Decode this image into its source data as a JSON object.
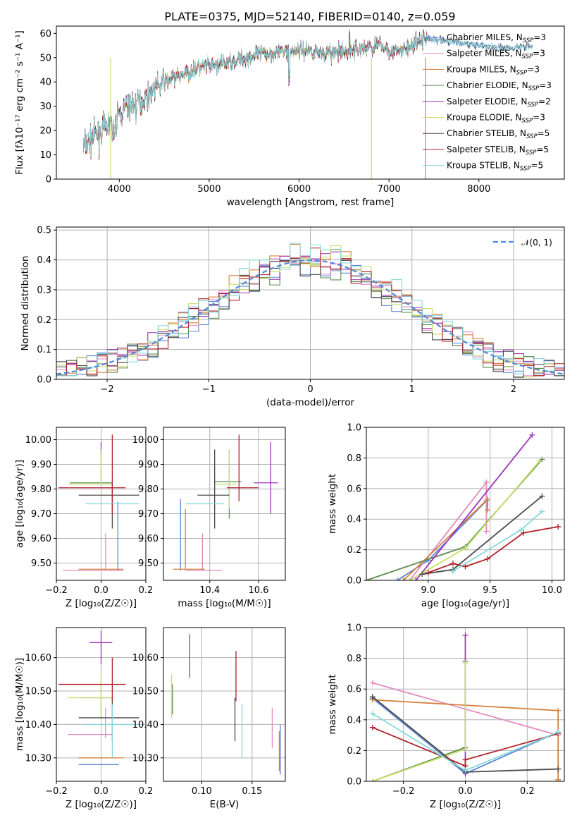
{
  "colors": {
    "Chabrier MILES": "#5f87d6",
    "Salpeter MILES": "#e28bc0",
    "Kroupa MILES": "#d6813a",
    "Chabrier ELODIE": "#5d8f4f",
    "Salpeter ELODIE": "#9b35b8",
    "Kroupa ELODIE": "#c8e06a",
    "Chabrier STELIB": "#4a4a4a",
    "Salpeter STELIB": "#b02028",
    "Kroupa STELIB": "#86d8dc",
    "normal": "#4f88d6"
  },
  "chart_data": [
    {
      "id": "spectrum",
      "type": "line",
      "title": "PLATE=0375, MJD=52140, FIBERID=0140, z=0.059",
      "xlabel": "wavelength [Angstrom, rest frame]",
      "ylabel": "Flux [fλ10⁻¹⁷ erg cm⁻² s⁻¹ A⁻¹]",
      "xlim": [
        3300,
        8950
      ],
      "ylim": [
        0,
        63
      ],
      "xticks": [
        4000,
        5000,
        6000,
        7000,
        8000
      ],
      "yticks": [
        0,
        10,
        20,
        30,
        40,
        50,
        60
      ],
      "grid": false,
      "legend_position": "right",
      "continuum_x": [
        3600,
        3700,
        3800,
        3900,
        3950,
        4000,
        4100,
        4200,
        4300,
        4400,
        4500,
        4700,
        4900,
        5100,
        5300,
        5500,
        5700,
        5900,
        6100,
        6300,
        6500,
        6700,
        6900,
        7100,
        7300,
        7400
      ],
      "continuum_y": [
        13,
        17,
        20,
        22,
        24,
        27,
        30,
        31,
        34,
        38,
        40,
        43,
        46,
        47,
        49,
        51,
        52,
        53,
        53,
        52,
        52,
        54,
        55,
        52,
        56,
        58
      ],
      "extended_x": [
        7400,
        7600,
        7800,
        8000,
        8200,
        8400,
        8600
      ],
      "extended_y": [
        58,
        57,
        56,
        55,
        54,
        54,
        55
      ],
      "series": [
        {
          "name": "Chabrier MILES, N_SSP=3",
          "text": "Chabrier MILES, N",
          "sub": "SSP",
          "suffix": "=3"
        },
        {
          "name": "Salpeter MILES, N_SSP=3",
          "text": "Salpeter MILES, N",
          "sub": "SSP",
          "suffix": "=3"
        },
        {
          "name": "Kroupa MILES, N_SSP=3",
          "text": "Kroupa MILES, N",
          "sub": "SSP",
          "suffix": "=3"
        },
        {
          "name": "Chabrier ELODIE, N_SSP=3",
          "text": "Chabrier ELODIE, N",
          "sub": "SSP",
          "suffix": "=3"
        },
        {
          "name": "Salpeter ELODIE, N_SSP=2",
          "text": "Salpeter ELODIE, N",
          "sub": "SSP",
          "suffix": "=2"
        },
        {
          "name": "Kroupa ELODIE, N_SSP=3",
          "text": "Kroupa ELODIE, N",
          "sub": "SSP",
          "suffix": "=3"
        },
        {
          "name": "Chabrier STELIB, N_SSP=5",
          "text": "Chabrier STELIB, N",
          "sub": "SSP",
          "suffix": "=5"
        },
        {
          "name": "Salpeter STELIB, N_SSP=5",
          "text": "Salpeter STELIB, N",
          "sub": "SSP",
          "suffix": "=5"
        },
        {
          "name": "Kroupa STELIB, N_SSP=5",
          "text": "Kroupa STELIB, N",
          "sub": "SSP",
          "suffix": "=5"
        }
      ]
    },
    {
      "id": "residuals",
      "type": "line",
      "xlabel": "(data-model)/error",
      "ylabel": "Normed distribution",
      "xlim": [
        -2.5,
        2.5
      ],
      "ylim": [
        0,
        0.51
      ],
      "xticks": [
        -2,
        -1,
        0,
        1,
        2
      ],
      "yticks": [
        0.0,
        0.1,
        0.2,
        0.3,
        0.4,
        0.5
      ],
      "grid": true,
      "legend": "𝒩(0, 1)",
      "legend_position": "top-right",
      "bin_width": 0.1
    },
    {
      "id": "age-vs-Z",
      "type": "scatter",
      "xlabel": "Z [log₁₀(Z/Z☉)]",
      "ylabel": "age  [log₁₀(age/yr)]",
      "xlim": [
        -0.2,
        0.2
      ],
      "ylim": [
        9.43,
        10.05
      ],
      "xticks": [
        -0.2,
        0.0,
        0.2
      ],
      "yticks": [
        9.5,
        9.6,
        9.7,
        9.8,
        9.9,
        10.0
      ],
      "grid": true,
      "points": [
        {
          "series": "Chabrier MILES",
          "x": 0.075,
          "y": 9.6,
          "xl": 0.075,
          "xh": 0.075,
          "yl": 9.47,
          "yh": 9.75
        },
        {
          "series": "Salpeter MILES",
          "x": 0.02,
          "y": 9.47,
          "xl": -0.17,
          "xh": 0.1,
          "yl": 9.47,
          "yh": 9.62
        },
        {
          "series": "Kroupa MILES",
          "x": 0.03,
          "y": 9.475,
          "xl": -0.1,
          "xh": 0.1,
          "yl": 9.475,
          "yh": 9.475
        },
        {
          "series": "Chabrier ELODIE",
          "x": 0.0,
          "y": 9.825,
          "xl": -0.14,
          "xh": 0.05,
          "yl": 9.83,
          "yh": 9.96
        },
        {
          "series": "Salpeter ELODIE",
          "x": 0.0,
          "y": 9.825,
          "xl": 0.0,
          "xh": 0.0,
          "yl": 9.94,
          "yh": 9.99
        },
        {
          "series": "Kroupa ELODIE",
          "x": 0.0,
          "y": 9.82,
          "xl": -0.15,
          "xh": 0.05,
          "yl": 9.82,
          "yh": 9.96
        },
        {
          "series": "Chabrier STELIB",
          "x": 0.05,
          "y": 9.775,
          "xl": -0.1,
          "xh": 0.17,
          "yl": 9.64,
          "yh": 9.83
        },
        {
          "series": "Salpeter STELIB",
          "x": 0.05,
          "y": 9.805,
          "xl": -0.19,
          "xh": 0.11,
          "yl": 9.7,
          "yh": 10.02
        },
        {
          "series": "Kroupa STELIB",
          "x": 0.05,
          "y": 9.74,
          "xl": -0.07,
          "xh": 0.17,
          "yl": 9.74,
          "yh": 9.74
        }
      ]
    },
    {
      "id": "age-vs-mass",
      "type": "scatter",
      "xlabel": "mass [log₁₀(M/M☉)]",
      "xlim": [
        10.21,
        10.71
      ],
      "ylim": [
        9.43,
        10.05
      ],
      "xticks": [
        10.4,
        10.6
      ],
      "yticks": [
        9.5,
        9.6,
        9.7,
        9.8,
        9.9,
        10.0
      ],
      "grid": true,
      "points": [
        {
          "series": "Chabrier MILES",
          "x": 10.28,
          "y": 9.47,
          "xl": 10.28,
          "xh": 10.28,
          "yl": 9.47,
          "yh": 9.76
        },
        {
          "series": "Salpeter MILES",
          "x": 10.37,
          "y": 9.47,
          "xl": 10.3,
          "xh": 10.45,
          "yl": 9.47,
          "yh": 9.62
        },
        {
          "series": "Kroupa MILES",
          "x": 10.3,
          "y": 9.475,
          "xl": 10.25,
          "xh": 10.38,
          "yl": 9.475,
          "yh": 9.72
        },
        {
          "series": "Chabrier ELODIE",
          "x": 10.48,
          "y": 9.83,
          "xl": 10.42,
          "xh": 10.53,
          "yl": 9.68,
          "yh": 9.96
        },
        {
          "series": "Salpeter ELODIE",
          "x": 10.65,
          "y": 9.825,
          "xl": 10.58,
          "xh": 10.68,
          "yl": 9.7,
          "yh": 9.99
        },
        {
          "series": "Kroupa ELODIE",
          "x": 10.48,
          "y": 9.82,
          "xl": 10.42,
          "xh": 10.51,
          "yl": 9.72,
          "yh": 9.96
        },
        {
          "series": "Chabrier STELIB",
          "x": 10.42,
          "y": 9.775,
          "xl": 10.35,
          "xh": 10.48,
          "yl": 9.64,
          "yh": 9.96
        },
        {
          "series": "Salpeter STELIB",
          "x": 10.52,
          "y": 9.805,
          "xl": 10.47,
          "xh": 10.6,
          "yl": 9.75,
          "yh": 10.02
        },
        {
          "series": "Kroupa STELIB",
          "x": 10.4,
          "y": 9.74,
          "xl": 10.3,
          "xh": 10.46,
          "yl": 9.74,
          "yh": 9.74
        }
      ]
    },
    {
      "id": "mass-weight-vs-age",
      "type": "line",
      "xlabel": "age  [log₁₀(age/yr)]",
      "ylabel": "mass weight",
      "xlim": [
        8.5,
        10.1
      ],
      "ylim": [
        0.0,
        1.0
      ],
      "xticks": [
        9.0,
        9.5,
        10.0
      ],
      "yticks": [
        0.0,
        0.2,
        0.4,
        0.6,
        0.8,
        1.0
      ],
      "grid": true,
      "series": [
        {
          "name": "Chabrier MILES",
          "x": [
            8.75,
            9.0,
            9.47
          ],
          "y": [
            0.0,
            0.13,
            0.52
          ]
        },
        {
          "name": "Salpeter MILES",
          "x": [
            8.85,
            9.47,
            9.47
          ],
          "y": [
            0.0,
            0.64,
            0.32
          ]
        },
        {
          "name": "Kroupa MILES",
          "x": [
            8.8,
            9.48,
            9.48
          ],
          "y": [
            0.0,
            0.53,
            0.46
          ]
        },
        {
          "name": "Chabrier ELODIE",
          "x": [
            8.5,
            9.3,
            9.92
          ],
          "y": [
            0.0,
            0.22,
            0.79
          ]
        },
        {
          "name": "Salpeter ELODIE",
          "x": [
            8.9,
            9.84
          ],
          "y": [
            0.0,
            0.95
          ]
        },
        {
          "name": "Kroupa ELODIE",
          "x": [
            8.85,
            9.3,
            9.9
          ],
          "y": [
            0.0,
            0.21,
            0.78
          ]
        },
        {
          "name": "Chabrier STELIB",
          "x": [
            8.95,
            9.2,
            9.92
          ],
          "y": [
            0.04,
            0.07,
            0.55
          ]
        },
        {
          "name": "Salpeter STELIB",
          "x": [
            9.0,
            9.2,
            9.3,
            9.48,
            9.77,
            10.05
          ],
          "y": [
            0.05,
            0.11,
            0.09,
            0.14,
            0.31,
            0.35
          ]
        },
        {
          "name": "Kroupa STELIB",
          "x": [
            9.2,
            9.75,
            9.92
          ],
          "y": [
            0.06,
            0.33,
            0.45
          ]
        }
      ]
    },
    {
      "id": "mass-vs-Z",
      "type": "scatter",
      "xlabel": "Z [log₁₀(Z/Z☉)]",
      "ylabel": "mass [log₁₀(M/M☉)]",
      "xlim": [
        -0.2,
        0.2
      ],
      "ylim": [
        10.23,
        10.69
      ],
      "xticks": [
        -0.2,
        0.0,
        0.2
      ],
      "yticks": [
        10.3,
        10.4,
        10.5,
        10.6
      ],
      "grid": true,
      "points": [
        {
          "series": "Chabrier MILES",
          "x": 0.075,
          "y": 10.28,
          "xl": -0.1,
          "xh": 0.08,
          "yl": 10.28,
          "yh": 10.28
        },
        {
          "series": "Salpeter MILES",
          "x": 0.02,
          "y": 10.37,
          "xl": -0.15,
          "xh": 0.05,
          "yl": 10.36,
          "yh": 10.45
        },
        {
          "series": "Kroupa MILES",
          "x": 0.03,
          "y": 10.3,
          "xl": -0.1,
          "xh": 0.1,
          "yl": 10.3,
          "yh": 10.3
        },
        {
          "series": "Chabrier ELODIE",
          "x": 0.0,
          "y": 10.48,
          "xl": -0.1,
          "xh": 0.05,
          "yl": 10.42,
          "yh": 10.53
        },
        {
          "series": "Salpeter ELODIE",
          "x": 0.0,
          "y": 10.645,
          "xl": -0.05,
          "xh": 0.05,
          "yl": 10.58,
          "yh": 10.68
        },
        {
          "series": "Kroupa ELODIE",
          "x": 0.0,
          "y": 10.48,
          "xl": -0.15,
          "xh": 0.05,
          "yl": 10.42,
          "yh": 10.55
        },
        {
          "series": "Chabrier STELIB",
          "x": 0.05,
          "y": 10.42,
          "xl": -0.1,
          "xh": 0.17,
          "yl": 10.35,
          "yh": 10.48
        },
        {
          "series": "Salpeter STELIB",
          "x": 0.05,
          "y": 10.52,
          "xl": -0.19,
          "xh": 0.11,
          "yl": 10.47,
          "yh": 10.6
        },
        {
          "series": "Kroupa STELIB",
          "x": 0.05,
          "y": 10.4,
          "xl": -0.07,
          "xh": 0.17,
          "yl": 10.3,
          "yh": 10.46
        }
      ]
    },
    {
      "id": "mass-vs-ebv",
      "type": "scatter",
      "xlabel": "E(B-V)",
      "xlim": [
        0.062,
        0.183
      ],
      "ylim": [
        10.23,
        10.69
      ],
      "xticks": [
        0.1,
        0.15
      ],
      "yticks": [
        10.3,
        10.4,
        10.5,
        10.6
      ],
      "grid": true,
      "points": [
        {
          "series": "Chabrier MILES",
          "x": 0.178,
          "yl": 10.25,
          "yh": 10.4
        },
        {
          "series": "Salpeter MILES",
          "x": 0.17,
          "yl": 10.33,
          "yh": 10.45
        },
        {
          "series": "Kroupa MILES",
          "x": 0.177,
          "yl": 10.26,
          "yh": 10.38
        },
        {
          "series": "Chabrier ELODIE",
          "x": 0.071,
          "yl": 10.43,
          "yh": 10.52
        },
        {
          "series": "Salpeter ELODIE",
          "x": 0.088,
          "yl": 10.54,
          "yh": 10.67
        },
        {
          "series": "Kroupa ELODIE",
          "x": 0.07,
          "yl": 10.42,
          "yh": 10.55
        },
        {
          "series": "Chabrier STELIB",
          "x": 0.133,
          "yl": 10.35,
          "yh": 10.48
        },
        {
          "series": "Salpeter STELIB",
          "x": 0.134,
          "yl": 10.47,
          "yh": 10.62
        },
        {
          "series": "Kroupa STELIB",
          "x": 0.14,
          "yl": 10.3,
          "yh": 10.46
        }
      ]
    },
    {
      "id": "mass-weight-vs-Z",
      "type": "line",
      "xlabel": "Z [log₁₀(Z/Z☉)]",
      "ylabel": "mass weight",
      "xlim": [
        -0.32,
        0.32
      ],
      "ylim": [
        0.0,
        1.0
      ],
      "xticks": [
        -0.2,
        0.0,
        0.2
      ],
      "yticks": [
        0.0,
        0.2,
        0.4,
        0.6,
        0.8,
        1.0
      ],
      "grid": true,
      "series": [
        {
          "name": "Chabrier MILES",
          "x": [
            -0.3,
            0.0,
            0.3
          ],
          "y": [
            0.54,
            0.05,
            0.32
          ]
        },
        {
          "name": "Salpeter MILES",
          "x": [
            -0.3,
            0.3
          ],
          "y": [
            0.64,
            0.3
          ]
        },
        {
          "name": "Kroupa MILES",
          "x": [
            -0.3,
            0.3,
            0.3
          ],
          "y": [
            0.53,
            0.46,
            0.01
          ]
        },
        {
          "name": "Chabrier ELODIE",
          "x": [
            -0.3,
            0.0,
            0.0
          ],
          "y": [
            0.0,
            0.22,
            0.78
          ]
        },
        {
          "name": "Salpeter ELODIE",
          "x": [
            0.0,
            0.0
          ],
          "y": [
            0.05,
            0.95
          ]
        },
        {
          "name": "Kroupa ELODIE",
          "x": [
            -0.3,
            0.0,
            0.0
          ],
          "y": [
            0.0,
            0.21,
            0.77
          ]
        },
        {
          "name": "Chabrier STELIB",
          "x": [
            -0.3,
            0.0,
            0.3
          ],
          "y": [
            0.55,
            0.06,
            0.08
          ]
        },
        {
          "name": "Salpeter STELIB",
          "x": [
            -0.3,
            0.0,
            0.0,
            0.3
          ],
          "y": [
            0.35,
            0.1,
            0.14,
            0.31
          ]
        },
        {
          "name": "Kroupa STELIB",
          "x": [
            -0.3,
            0.0,
            0.3
          ],
          "y": [
            0.44,
            0.07,
            0.32
          ]
        }
      ]
    }
  ]
}
